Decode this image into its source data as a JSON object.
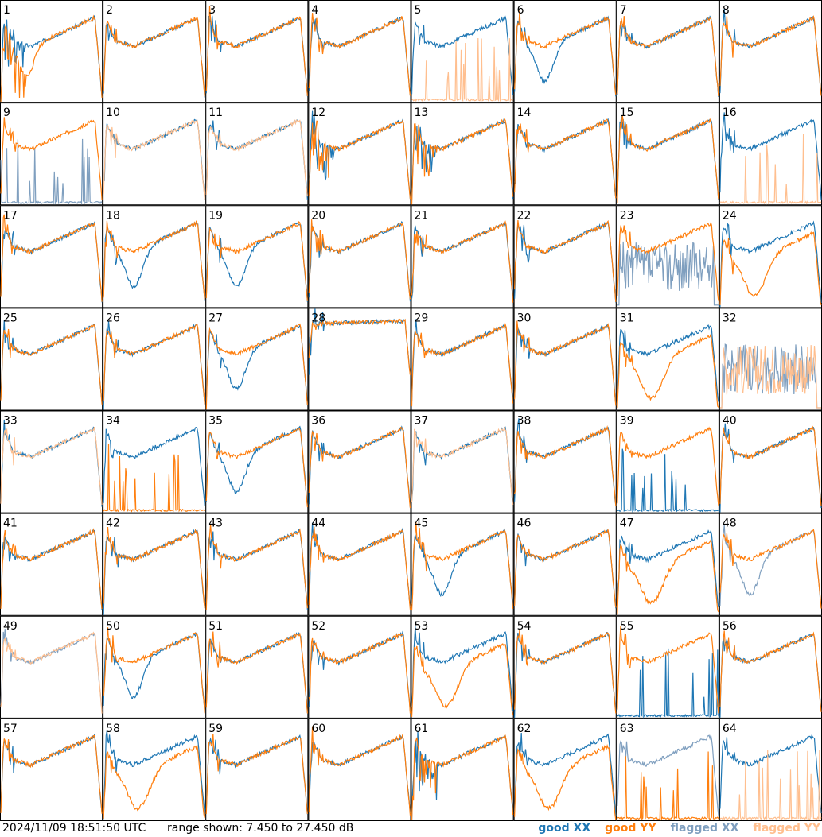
{
  "footer": {
    "timestamp": "2024/11/09 18:51:50 UTC",
    "range_text": "range shown: 7.450 to 27.450 dB"
  },
  "legend": [
    {
      "label": "good XX",
      "color": "#1f77b4"
    },
    {
      "label": "good YY",
      "color": "#ff7f0e"
    },
    {
      "label": "flagged XX",
      "color": "#7f9fbf"
    },
    {
      "label": "flagged YY",
      "color": "#ffbf8f"
    }
  ],
  "chart_data": {
    "type": "line",
    "ylim": [
      7.45,
      27.45
    ],
    "grid_cols": 8,
    "grid_rows": 8,
    "panels": [
      {
        "label": "1",
        "xx": "good",
        "yy": "good",
        "shape": "spiky_drop"
      },
      {
        "label": "2",
        "xx": "good",
        "yy": "good",
        "shape": "normal"
      },
      {
        "label": "3",
        "xx": "good",
        "yy": "good",
        "shape": "normal"
      },
      {
        "label": "4",
        "xx": "good",
        "yy": "good",
        "shape": "normal"
      },
      {
        "label": "5",
        "xx": "good",
        "yy": "flagged",
        "shape": "yy_low"
      },
      {
        "label": "6",
        "xx": "good",
        "yy": "good",
        "shape": "xx_dip"
      },
      {
        "label": "7",
        "xx": "good",
        "yy": "good",
        "shape": "normal"
      },
      {
        "label": "8",
        "xx": "good",
        "yy": "good",
        "shape": "normal"
      },
      {
        "label": "9",
        "xx": "flagged",
        "yy": "good",
        "shape": "xx_low"
      },
      {
        "label": "10",
        "xx": "good",
        "yy": "flagged",
        "shape": "normal"
      },
      {
        "label": "11",
        "xx": "good",
        "yy": "flagged",
        "shape": "normal"
      },
      {
        "label": "12",
        "xx": "good",
        "yy": "good",
        "shape": "spiky"
      },
      {
        "label": "13",
        "xx": "good",
        "yy": "good",
        "shape": "spiky"
      },
      {
        "label": "14",
        "xx": "good",
        "yy": "good",
        "shape": "normal"
      },
      {
        "label": "15",
        "xx": "good",
        "yy": "good",
        "shape": "normal"
      },
      {
        "label": "16",
        "xx": "good",
        "yy": "flagged",
        "shape": "yy_low"
      },
      {
        "label": "17",
        "xx": "good",
        "yy": "good",
        "shape": "normal"
      },
      {
        "label": "18",
        "xx": "good",
        "yy": "good",
        "shape": "xx_dip"
      },
      {
        "label": "19",
        "xx": "good",
        "yy": "good",
        "shape": "xx_dip"
      },
      {
        "label": "20",
        "xx": "good",
        "yy": "good",
        "shape": "normal"
      },
      {
        "label": "21",
        "xx": "good",
        "yy": "good",
        "shape": "normal"
      },
      {
        "label": "22",
        "xx": "good",
        "yy": "good",
        "shape": "normal"
      },
      {
        "label": "23",
        "xx": "flagged",
        "yy": "good",
        "shape": "xx_noisy"
      },
      {
        "label": "24",
        "xx": "good",
        "yy": "good",
        "shape": "yy_dip"
      },
      {
        "label": "25",
        "xx": "good",
        "yy": "good",
        "shape": "normal"
      },
      {
        "label": "26",
        "xx": "good",
        "yy": "good",
        "shape": "normal"
      },
      {
        "label": "27",
        "xx": "good",
        "yy": "good",
        "shape": "xx_dip"
      },
      {
        "label": "28",
        "xx": "good",
        "yy": "good",
        "shape": "flat"
      },
      {
        "label": "29",
        "xx": "good",
        "yy": "good",
        "shape": "normal"
      },
      {
        "label": "30",
        "xx": "good",
        "yy": "good",
        "shape": "normal"
      },
      {
        "label": "31",
        "xx": "good",
        "yy": "good",
        "shape": "yy_dip"
      },
      {
        "label": "32",
        "xx": "flagged",
        "yy": "flagged",
        "shape": "flagged_noisy"
      },
      {
        "label": "33",
        "xx": "good",
        "yy": "flagged",
        "shape": "normal"
      },
      {
        "label": "34",
        "xx": "good",
        "yy": "good",
        "shape": "yy_low"
      },
      {
        "label": "35",
        "xx": "good",
        "yy": "good",
        "shape": "xx_dip"
      },
      {
        "label": "36",
        "xx": "good",
        "yy": "good",
        "shape": "normal"
      },
      {
        "label": "37",
        "xx": "good",
        "yy": "flagged",
        "shape": "normal"
      },
      {
        "label": "38",
        "xx": "good",
        "yy": "good",
        "shape": "normal"
      },
      {
        "label": "39",
        "xx": "good",
        "yy": "good",
        "shape": "xx_low"
      },
      {
        "label": "40",
        "xx": "good",
        "yy": "good",
        "shape": "normal"
      },
      {
        "label": "41",
        "xx": "good",
        "yy": "good",
        "shape": "normal"
      },
      {
        "label": "42",
        "xx": "good",
        "yy": "good",
        "shape": "normal"
      },
      {
        "label": "43",
        "xx": "good",
        "yy": "good",
        "shape": "normal"
      },
      {
        "label": "44",
        "xx": "good",
        "yy": "good",
        "shape": "normal"
      },
      {
        "label": "45",
        "xx": "good",
        "yy": "good",
        "shape": "xx_dip"
      },
      {
        "label": "46",
        "xx": "good",
        "yy": "good",
        "shape": "normal"
      },
      {
        "label": "47",
        "xx": "good",
        "yy": "good",
        "shape": "yy_dip"
      },
      {
        "label": "48",
        "xx": "flagged",
        "yy": "good",
        "shape": "xx_dip"
      },
      {
        "label": "49",
        "xx": "flagged",
        "yy": "flagged",
        "shape": "normal"
      },
      {
        "label": "50",
        "xx": "good",
        "yy": "good",
        "shape": "xx_dip"
      },
      {
        "label": "51",
        "xx": "good",
        "yy": "good",
        "shape": "normal"
      },
      {
        "label": "52",
        "xx": "good",
        "yy": "good",
        "shape": "normal"
      },
      {
        "label": "53",
        "xx": "good",
        "yy": "good",
        "shape": "yy_dip"
      },
      {
        "label": "54",
        "xx": "good",
        "yy": "good",
        "shape": "normal"
      },
      {
        "label": "55",
        "xx": "good",
        "yy": "good",
        "shape": "xx_low"
      },
      {
        "label": "56",
        "xx": "good",
        "yy": "good",
        "shape": "normal"
      },
      {
        "label": "57",
        "xx": "good",
        "yy": "good",
        "shape": "normal"
      },
      {
        "label": "58",
        "xx": "good",
        "yy": "good",
        "shape": "yy_dip"
      },
      {
        "label": "59",
        "xx": "good",
        "yy": "good",
        "shape": "normal"
      },
      {
        "label": "60",
        "xx": "good",
        "yy": "good",
        "shape": "normal"
      },
      {
        "label": "61",
        "xx": "good",
        "yy": "good",
        "shape": "spiky"
      },
      {
        "label": "62",
        "xx": "good",
        "yy": "good",
        "shape": "yy_dip"
      },
      {
        "label": "63",
        "xx": "flagged",
        "yy": "good",
        "shape": "yy_low"
      },
      {
        "label": "64",
        "xx": "good",
        "yy": "flagged",
        "shape": "yy_low"
      }
    ]
  }
}
